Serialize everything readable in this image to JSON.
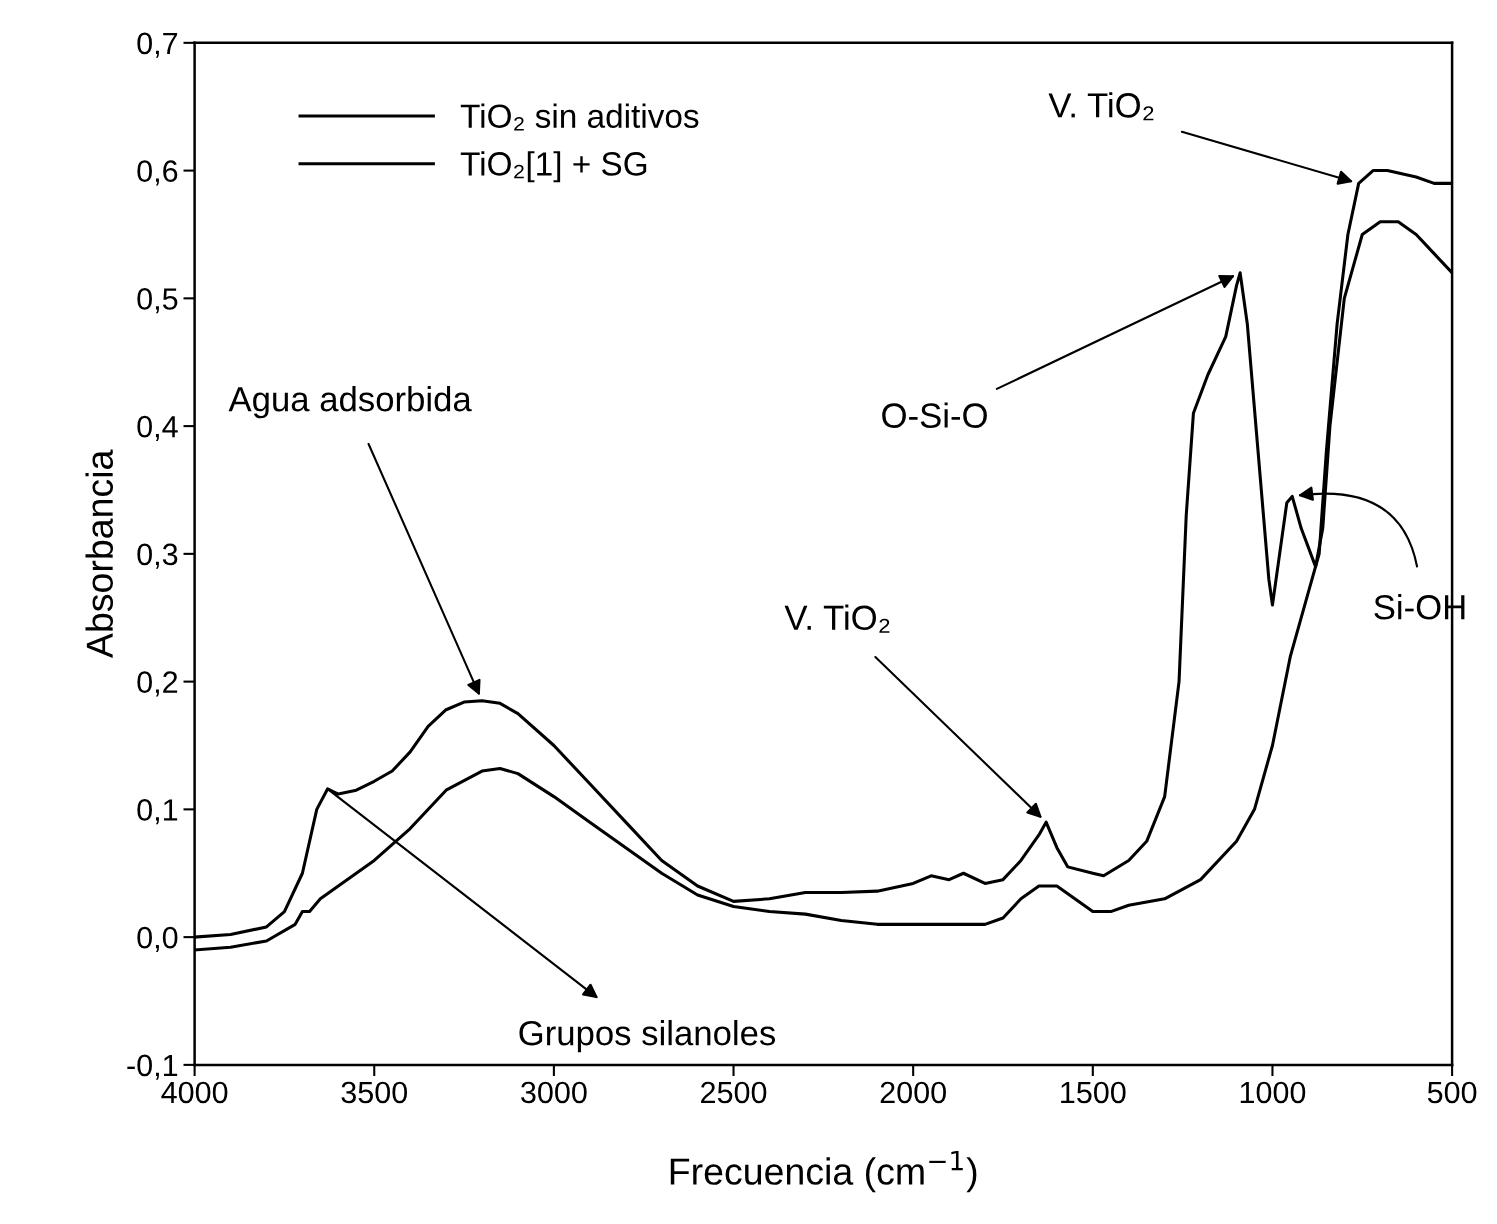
{
  "chart_data": {
    "type": "line",
    "xlabel": "Frecuencia (cm$^{−1}$)",
    "ylabel": "Absorbancia",
    "xlim": [
      4000,
      500
    ],
    "ylim": [
      -0.1,
      0.7
    ],
    "xticks": [
      4000,
      3500,
      3000,
      2500,
      2000,
      1500,
      1000,
      500
    ],
    "yticks": [
      {
        "value": -0.1,
        "label": "-0,1"
      },
      {
        "value": 0.0,
        "label": "0,0"
      },
      {
        "value": 0.1,
        "label": "0,1"
      },
      {
        "value": 0.2,
        "label": "0,2"
      },
      {
        "value": 0.3,
        "label": "0,3"
      },
      {
        "value": 0.4,
        "label": "0,4"
      },
      {
        "value": 0.5,
        "label": "0,5"
      },
      {
        "value": 0.6,
        "label": "0,6"
      },
      {
        "value": 0.7,
        "label": "0,7"
      }
    ],
    "grid": false,
    "legend": "top left",
    "marker": "none",
    "line_style": "solid",
    "series": [
      {
        "name": "TiO₂ sin aditivos",
        "color": "#000000",
        "x": [
          4000,
          3900,
          3800,
          3720,
          3700,
          3680,
          3650,
          3600,
          3500,
          3400,
          3300,
          3200,
          3150,
          3100,
          3000,
          2900,
          2800,
          2700,
          2600,
          2500,
          2400,
          2300,
          2200,
          2100,
          2000,
          1900,
          1800,
          1750,
          1700,
          1650,
          1600,
          1550,
          1500,
          1450,
          1400,
          1300,
          1200,
          1100,
          1050,
          1000,
          950,
          900,
          870,
          850,
          820,
          790,
          760,
          720,
          680,
          600,
          550,
          500
        ],
        "values": [
          -0.01,
          -0.008,
          -0.003,
          0.01,
          0.02,
          0.02,
          0.03,
          0.04,
          0.06,
          0.085,
          0.115,
          0.13,
          0.132,
          0.128,
          0.11,
          0.09,
          0.07,
          0.05,
          0.033,
          0.024,
          0.02,
          0.018,
          0.013,
          0.01,
          0.01,
          0.01,
          0.01,
          0.015,
          0.03,
          0.04,
          0.04,
          0.03,
          0.02,
          0.02,
          0.025,
          0.03,
          0.045,
          0.075,
          0.1,
          0.15,
          0.22,
          0.27,
          0.3,
          0.38,
          0.48,
          0.55,
          0.59,
          0.6,
          0.6,
          0.595,
          0.59,
          0.59
        ]
      },
      {
        "name": "TiO₂[1] + SG",
        "color": "#000000",
        "x": [
          4000,
          3900,
          3800,
          3750,
          3700,
          3660,
          3630,
          3600,
          3550,
          3500,
          3450,
          3400,
          3350,
          3300,
          3250,
          3200,
          3150,
          3100,
          3000,
          2900,
          2800,
          2700,
          2600,
          2500,
          2400,
          2300,
          2200,
          2100,
          2000,
          1950,
          1900,
          1860,
          1800,
          1750,
          1700,
          1650,
          1630,
          1600,
          1570,
          1500,
          1470,
          1400,
          1350,
          1300,
          1260,
          1240,
          1220,
          1180,
          1130,
          1100,
          1090,
          1070,
          1040,
          1010,
          1000,
          980,
          960,
          945,
          920,
          880,
          860,
          840,
          800,
          750,
          700,
          650,
          600,
          550,
          500
        ],
        "values": [
          0.0,
          0.002,
          0.008,
          0.02,
          0.05,
          0.1,
          0.116,
          0.112,
          0.115,
          0.122,
          0.13,
          0.145,
          0.165,
          0.178,
          0.184,
          0.185,
          0.183,
          0.175,
          0.15,
          0.12,
          0.09,
          0.06,
          0.04,
          0.028,
          0.03,
          0.035,
          0.035,
          0.036,
          0.042,
          0.048,
          0.045,
          0.05,
          0.042,
          0.045,
          0.06,
          0.08,
          0.09,
          0.07,
          0.055,
          0.05,
          0.048,
          0.06,
          0.075,
          0.11,
          0.2,
          0.33,
          0.41,
          0.44,
          0.47,
          0.51,
          0.52,
          0.48,
          0.38,
          0.28,
          0.26,
          0.3,
          0.34,
          0.345,
          0.32,
          0.29,
          0.32,
          0.4,
          0.5,
          0.55,
          0.56,
          0.56,
          0.55,
          0.535,
          0.52
        ]
      }
    ],
    "annotations": [
      {
        "text": "Agua adsorbida",
        "x": 3200,
        "y": 0.185
      },
      {
        "text": "Grupos silanoles",
        "x": 3630,
        "y": 0.116
      },
      {
        "text": "V. TiO₂",
        "x": 1630,
        "y": 0.09
      },
      {
        "text": "O-Si-O",
        "x": 1090,
        "y": 0.52
      },
      {
        "text": "V. TiO₂",
        "x": 760,
        "y": 0.59
      },
      {
        "text": "Si-OH",
        "x": 945,
        "y": 0.345
      }
    ]
  }
}
